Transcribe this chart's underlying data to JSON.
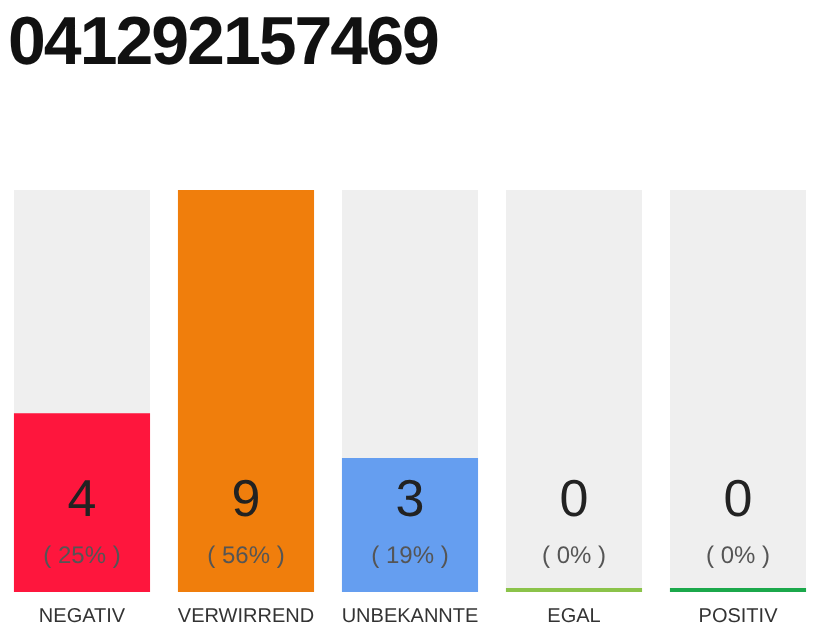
{
  "chart_data": {
    "type": "bar",
    "title": "041292157469",
    "categories": [
      "NEGATIV",
      "VERWIRREND",
      "UNBEKANNTE",
      "EGAL",
      "POSITIV"
    ],
    "values": [
      4,
      9,
      3,
      0,
      0
    ],
    "colors": [
      "#fe163d",
      "#f07e0c",
      "#659ef0",
      "#8bc34a",
      "#1ba84b"
    ],
    "value_labels": [
      "4\n( 25% )",
      "9\n( 56% )",
      "3\n( 19% )",
      "0\n( 0% )",
      "0\n( 0% )"
    ],
    "grid": false,
    "legend": false
  }
}
